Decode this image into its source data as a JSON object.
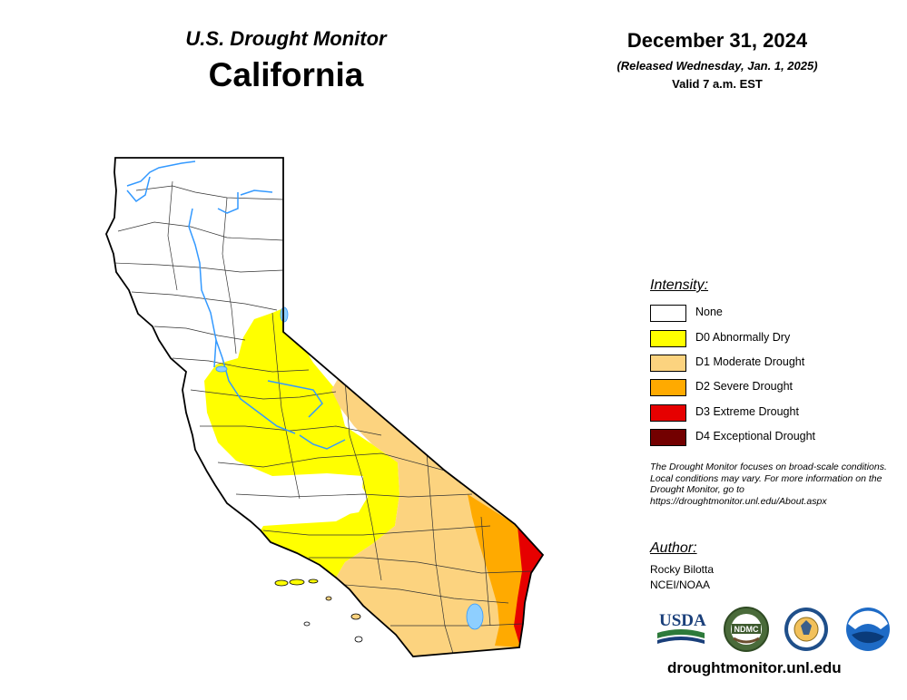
{
  "header": {
    "subtitle": "U.S. Drought Monitor",
    "title": "California",
    "date": "December 31, 2024",
    "released": "(Released Wednesday, Jan. 1, 2025)",
    "valid": "Valid 7 a.m. EST"
  },
  "legend": {
    "title": "Intensity:",
    "items": [
      {
        "label": "None",
        "color": "#ffffff"
      },
      {
        "label": "D0 Abnormally Dry",
        "color": "#ffff00"
      },
      {
        "label": "D1 Moderate Drought",
        "color": "#fcd37f"
      },
      {
        "label": "D2 Severe Drought",
        "color": "#ffaa00"
      },
      {
        "label": "D3 Extreme Drought",
        "color": "#e60000"
      },
      {
        "label": "D4 Exceptional Drought",
        "color": "#730000"
      }
    ]
  },
  "note": "The Drought Monitor focuses on broad-scale conditions. Local conditions may vary. For more information on the Drought Monitor, go to https://droughtmonitor.unl.edu/About.aspx",
  "author": {
    "title": "Author:",
    "name": "Rocky Bilotta",
    "org": "NCEI/NOAA"
  },
  "logos": [
    {
      "name": "usda-logo",
      "text": "USDA"
    },
    {
      "name": "ndmc-logo",
      "text": "NDMC"
    },
    {
      "name": "doc-seal-logo",
      "text": ""
    },
    {
      "name": "noaa-logo",
      "text": "NOAA"
    }
  ],
  "website": "droughtmonitor.unl.edu"
}
